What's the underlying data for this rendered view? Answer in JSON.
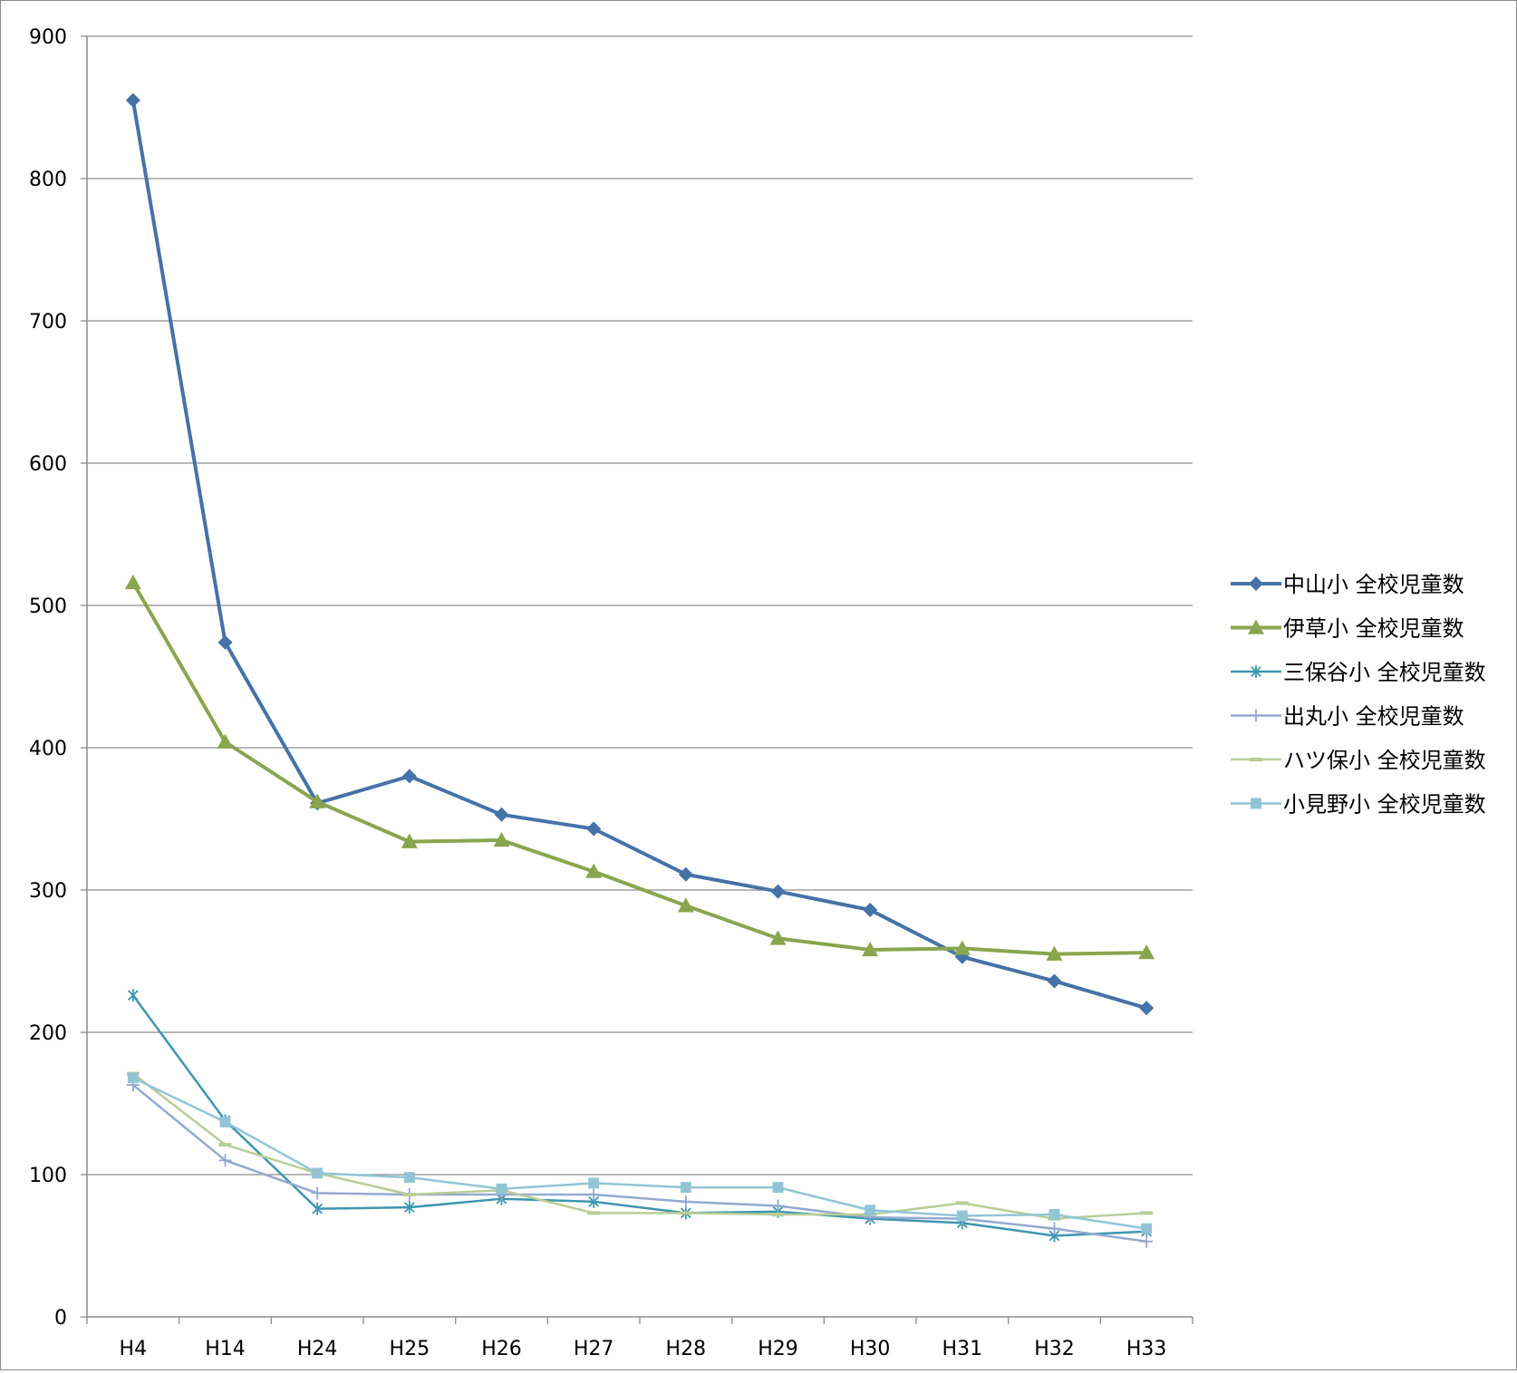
{
  "chart_data": {
    "type": "line",
    "title": "",
    "xlabel": "",
    "ylabel": "",
    "categories": [
      "H4",
      "H14",
      "H24",
      "H25",
      "H26",
      "H27",
      "H28",
      "H29",
      "H30",
      "H31",
      "H32",
      "H33"
    ],
    "ylim": [
      0,
      900
    ],
    "yticks": [
      "0",
      "100",
      "200",
      "300",
      "400",
      "500",
      "600",
      "700",
      "800",
      "900"
    ],
    "grid": true,
    "legend_position": "right",
    "series": [
      {
        "name": "中山小 全校児童数",
        "color": "#4572A7",
        "marker": "diamond",
        "values": [
          855,
          474,
          361,
          380,
          353,
          343,
          311,
          299,
          286,
          253,
          236,
          217
        ]
      },
      {
        "name": "伊草小 全校児童数",
        "color": "#89A54E",
        "marker": "triangle",
        "values": [
          516,
          404,
          362,
          334,
          335,
          313,
          289,
          266,
          258,
          259,
          255,
          256
        ]
      },
      {
        "name": "三保谷小 全校児童数",
        "color": "#3D96AE",
        "marker": "asterisk",
        "values": [
          226,
          138,
          76,
          77,
          83,
          81,
          73,
          74,
          69,
          66,
          57,
          60
        ]
      },
      {
        "name": "出丸小 全校児童数",
        "color": "#93A9CF",
        "marker": "plus",
        "values": [
          163,
          110,
          87,
          86,
          86,
          86,
          81,
          78,
          70,
          69,
          62,
          53
        ]
      },
      {
        "name": "ハツ保小 全校児童数",
        "color": "#B9CD96",
        "marker": "dash",
        "values": [
          171,
          121,
          101,
          86,
          89,
          73,
          73,
          72,
          72,
          80,
          69,
          73
        ]
      },
      {
        "name": "小見野小 全校児童数",
        "color": "#92C4D6",
        "marker": "square",
        "values": [
          168,
          137,
          101,
          98,
          90,
          94,
          91,
          91,
          75,
          71,
          72,
          62
        ]
      }
    ]
  }
}
